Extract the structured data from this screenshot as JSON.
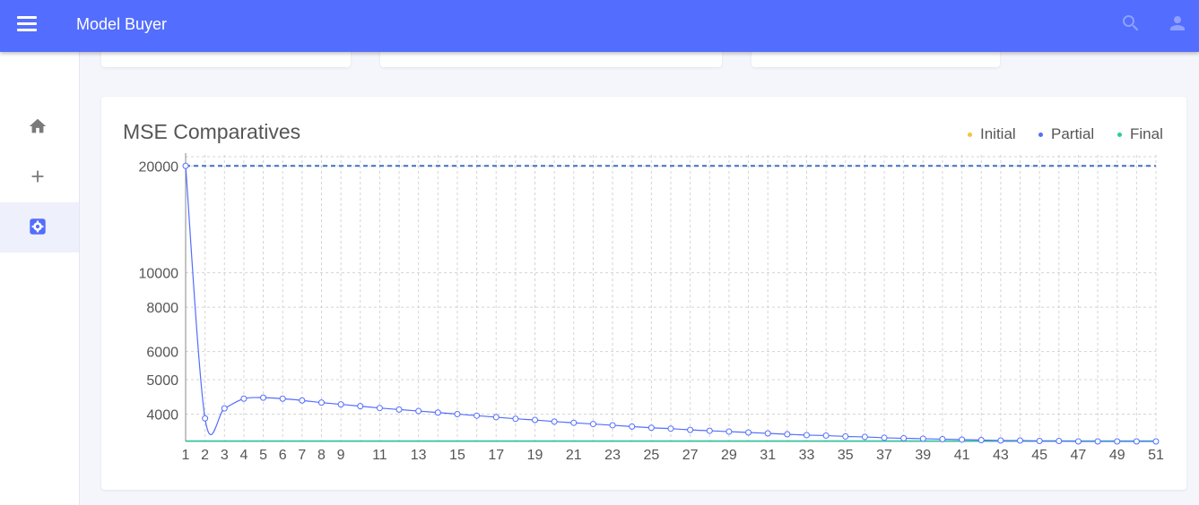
{
  "app": {
    "title": "Model Buyer"
  },
  "icons": {
    "menu": "menu-icon",
    "search": "search-icon",
    "account": "account-icon",
    "home": "home-icon",
    "add": "add-icon",
    "settings": "settings-icon"
  },
  "colors": {
    "primary": "#536dfe",
    "initial": "#f6c23e",
    "partial": "#536dfe",
    "final": "#2bcaa0",
    "active_nav": "#536dfe"
  },
  "nav": [
    {
      "name": "home",
      "active": false
    },
    {
      "name": "add",
      "active": false
    },
    {
      "name": "settings",
      "active": true
    }
  ],
  "chart": {
    "title": "MSE Comparatives",
    "legend": [
      {
        "label": "Initial",
        "color": "#f6c23e"
      },
      {
        "label": "Partial",
        "color": "#536dfe"
      },
      {
        "label": "Final",
        "color": "#2bcaa0"
      }
    ]
  },
  "chart_data": {
    "type": "line",
    "title": "MSE Comparatives",
    "xlabel": "",
    "ylabel": "",
    "x": [
      1,
      2,
      3,
      4,
      5,
      6,
      7,
      8,
      9,
      10,
      11,
      12,
      13,
      14,
      15,
      16,
      17,
      18,
      19,
      20,
      21,
      22,
      23,
      24,
      25,
      26,
      27,
      28,
      29,
      30,
      31,
      32,
      33,
      34,
      35,
      36,
      37,
      38,
      39,
      40,
      41,
      42,
      43,
      44,
      45,
      46,
      47,
      48,
      49,
      50,
      51
    ],
    "x_tick_labels": [
      "1",
      "2",
      "3",
      "4",
      "5",
      "6",
      "7",
      "8",
      "9",
      "11",
      "13",
      "15",
      "17",
      "19",
      "21",
      "23",
      "25",
      "27",
      "29",
      "31",
      "33",
      "35",
      "37",
      "39",
      "41",
      "43",
      "45",
      "47",
      "49",
      "51"
    ],
    "y_scale": "log",
    "y_ticks": [
      4000,
      5000,
      6000,
      8000,
      10000,
      20000
    ],
    "ylim": [
      3350,
      20500
    ],
    "grid": true,
    "legend_position": "top-right",
    "series": [
      {
        "name": "Initial",
        "values": [
          20000,
          20000,
          20000,
          20000,
          20000,
          20000,
          20000,
          20000,
          20000,
          20000,
          20000,
          20000,
          20000,
          20000,
          20000,
          20000,
          20000,
          20000,
          20000,
          20000,
          20000,
          20000,
          20000,
          20000,
          20000,
          20000,
          20000,
          20000,
          20000,
          20000,
          20000,
          20000,
          20000,
          20000,
          20000,
          20000,
          20000,
          20000,
          20000,
          20000,
          20000,
          20000,
          20000,
          20000,
          20000,
          20000,
          20000,
          20000,
          20000,
          20000,
          20000
        ]
      },
      {
        "name": "Partial",
        "values": [
          20000,
          3890,
          4150,
          4420,
          4450,
          4420,
          4370,
          4310,
          4260,
          4210,
          4160,
          4120,
          4080,
          4040,
          4000,
          3960,
          3920,
          3880,
          3850,
          3810,
          3780,
          3750,
          3720,
          3690,
          3660,
          3640,
          3610,
          3590,
          3570,
          3550,
          3530,
          3510,
          3490,
          3480,
          3460,
          3450,
          3430,
          3420,
          3410,
          3400,
          3390,
          3380,
          3370,
          3370,
          3360,
          3360,
          3350,
          3350,
          3350,
          3350,
          3350
        ]
      },
      {
        "name": "Final",
        "values": [
          3350,
          3350,
          3350,
          3350,
          3350,
          3350,
          3350,
          3350,
          3350,
          3350,
          3350,
          3350,
          3350,
          3350,
          3350,
          3350,
          3350,
          3350,
          3350,
          3350,
          3350,
          3350,
          3350,
          3350,
          3350,
          3350,
          3350,
          3350,
          3350,
          3350,
          3350,
          3350,
          3350,
          3350,
          3350,
          3350,
          3350,
          3350,
          3350,
          3350,
          3350,
          3350,
          3350,
          3350,
          3350,
          3350,
          3350,
          3350,
          3350,
          3350,
          3350
        ]
      }
    ]
  }
}
